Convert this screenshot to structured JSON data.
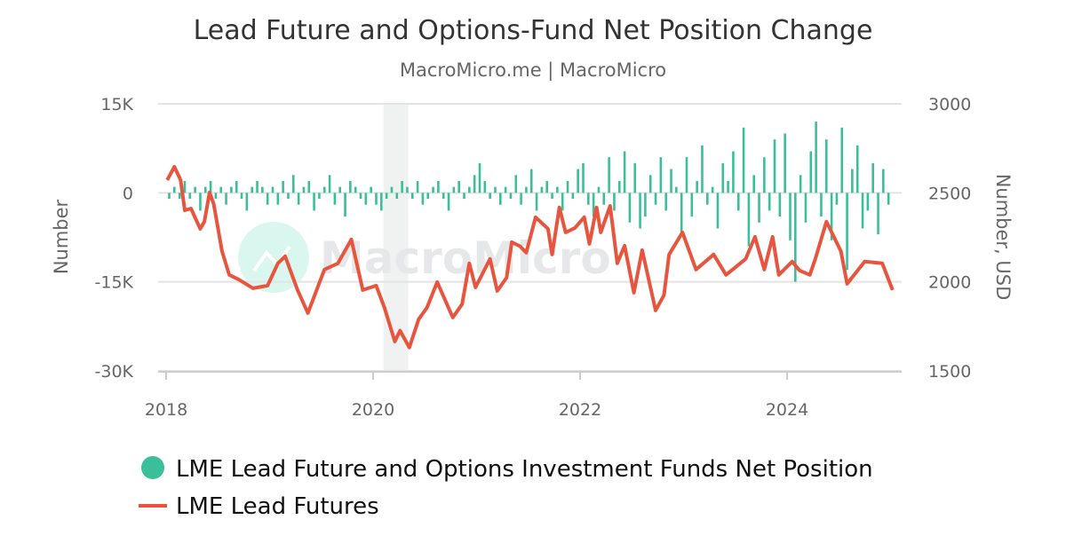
{
  "chart_data": {
    "type": "bar+line",
    "title": "Lead Future and Options-Fund Net Position Change",
    "subtitle": "MacroMicro.me | MacroMicro",
    "watermark": "MacroMicro",
    "ylabel_left": "Number",
    "ylabel_right": "Number, USD",
    "ylim_left": [
      -30000,
      15000
    ],
    "ylim_right": [
      1500,
      3000
    ],
    "xlim": [
      2017.9,
      2025.15
    ],
    "left_ticks": [
      {
        "v": 15000,
        "label": "15K"
      },
      {
        "v": 0,
        "label": "0"
      },
      {
        "v": -15000,
        "label": "-15K"
      },
      {
        "v": -30000,
        "label": "-30K"
      }
    ],
    "right_ticks": [
      {
        "v": 3000,
        "label": "3000"
      },
      {
        "v": 2500,
        "label": "2500"
      },
      {
        "v": 2000,
        "label": "2000"
      },
      {
        "v": 1500,
        "label": "1500"
      }
    ],
    "x_ticks": [
      {
        "v": 2018,
        "label": "2018"
      },
      {
        "v": 2020,
        "label": "2020"
      },
      {
        "v": 2022,
        "label": "2022"
      },
      {
        "v": 2024,
        "label": "2024"
      }
    ],
    "grid": true,
    "shaded_period": [
      2020.1,
      2020.34
    ],
    "legend_position": "bottom-left",
    "series": [
      {
        "name": "LME Lead Future and Options Investment Funds Net Position",
        "type": "bar",
        "axis": "left",
        "color": "#3bbf9a",
        "x_start": 2018.03,
        "x_step": 0.05,
        "unit": "thousand",
        "values": [
          -1,
          1,
          -1,
          2,
          -1,
          1,
          -3,
          1,
          2,
          -1,
          1,
          -2,
          1,
          2,
          -1,
          -3,
          1,
          2,
          1,
          -2,
          1,
          -2,
          2,
          -1,
          3,
          -2,
          1,
          2,
          -3,
          -1,
          1,
          3,
          -2,
          1,
          -4,
          2,
          1,
          -1,
          -2,
          1,
          -2,
          -3,
          -1,
          1,
          -1,
          2,
          1,
          -1,
          2,
          -2,
          -1,
          1,
          2,
          -1,
          -3,
          1,
          2,
          -1,
          1,
          3,
          5,
          2,
          -1,
          1,
          -2,
          1,
          -1,
          3,
          -2,
          1,
          4,
          -3,
          1,
          2,
          -1,
          1,
          -3,
          2,
          -1,
          4,
          5,
          -2,
          -4,
          1,
          -2,
          6,
          -3,
          2,
          7,
          -5,
          5,
          -6,
          -4,
          3,
          -2,
          6,
          -3,
          4,
          1,
          -7,
          6,
          -4,
          2,
          8,
          -2,
          1,
          -6,
          5,
          2,
          7,
          -3,
          11,
          -9,
          3,
          -5,
          6,
          -3,
          9,
          -4,
          10,
          -8,
          -15,
          3,
          -5,
          7,
          12,
          -4,
          9,
          -8,
          -2,
          11,
          -13,
          4,
          8,
          -6,
          -3,
          5,
          -7,
          4,
          -2
        ]
      },
      {
        "name": "LME Lead Futures",
        "type": "line",
        "axis": "right",
        "color": "#e8553e",
        "points": [
          [
            2018.01,
            2572
          ],
          [
            2018.08,
            2646
          ],
          [
            2018.14,
            2572
          ],
          [
            2018.18,
            2402
          ],
          [
            2018.24,
            2412
          ],
          [
            2018.33,
            2298
          ],
          [
            2018.37,
            2338
          ],
          [
            2018.42,
            2502
          ],
          [
            2018.46,
            2437
          ],
          [
            2018.54,
            2173
          ],
          [
            2018.61,
            2039
          ],
          [
            2018.7,
            2014
          ],
          [
            2018.84,
            1964
          ],
          [
            2018.98,
            1979
          ],
          [
            2019.08,
            2104
          ],
          [
            2019.15,
            2144
          ],
          [
            2019.27,
            1954
          ],
          [
            2019.37,
            1825
          ],
          [
            2019.53,
            2069
          ],
          [
            2019.66,
            2104
          ],
          [
            2019.79,
            2238
          ],
          [
            2019.9,
            1954
          ],
          [
            2020.03,
            1979
          ],
          [
            2020.11,
            1855
          ],
          [
            2020.21,
            1665
          ],
          [
            2020.26,
            1726
          ],
          [
            2020.35,
            1631
          ],
          [
            2020.44,
            1790
          ],
          [
            2020.52,
            1855
          ],
          [
            2020.62,
            1999
          ],
          [
            2020.77,
            1800
          ],
          [
            2020.86,
            1875
          ],
          [
            2020.93,
            2104
          ],
          [
            2020.99,
            1969
          ],
          [
            2021.13,
            2129
          ],
          [
            2021.2,
            1949
          ],
          [
            2021.29,
            2024
          ],
          [
            2021.34,
            2223
          ],
          [
            2021.42,
            2200
          ],
          [
            2021.48,
            2164
          ],
          [
            2021.57,
            2363
          ],
          [
            2021.69,
            2298
          ],
          [
            2021.73,
            2154
          ],
          [
            2021.8,
            2418
          ],
          [
            2021.86,
            2278
          ],
          [
            2021.95,
            2303
          ],
          [
            2022.04,
            2363
          ],
          [
            2022.09,
            2213
          ],
          [
            2022.16,
            2418
          ],
          [
            2022.2,
            2278
          ],
          [
            2022.29,
            2427
          ],
          [
            2022.36,
            2104
          ],
          [
            2022.43,
            2203
          ],
          [
            2022.52,
            1939
          ],
          [
            2022.6,
            2178
          ],
          [
            2022.73,
            1840
          ],
          [
            2022.81,
            1925
          ],
          [
            2022.86,
            2154
          ],
          [
            2022.99,
            2278
          ],
          [
            2023.12,
            2069
          ],
          [
            2023.29,
            2154
          ],
          [
            2023.41,
            2039
          ],
          [
            2023.6,
            2129
          ],
          [
            2023.69,
            2253
          ],
          [
            2023.78,
            2069
          ],
          [
            2023.86,
            2253
          ],
          [
            2023.92,
            2039
          ],
          [
            2024.05,
            2114
          ],
          [
            2024.12,
            2064
          ],
          [
            2024.22,
            2039
          ],
          [
            2024.27,
            2124
          ],
          [
            2024.38,
            2338
          ],
          [
            2024.52,
            2173
          ],
          [
            2024.58,
            1989
          ],
          [
            2024.75,
            2114
          ],
          [
            2024.92,
            2104
          ],
          [
            2025.02,
            1954
          ]
        ]
      }
    ]
  }
}
